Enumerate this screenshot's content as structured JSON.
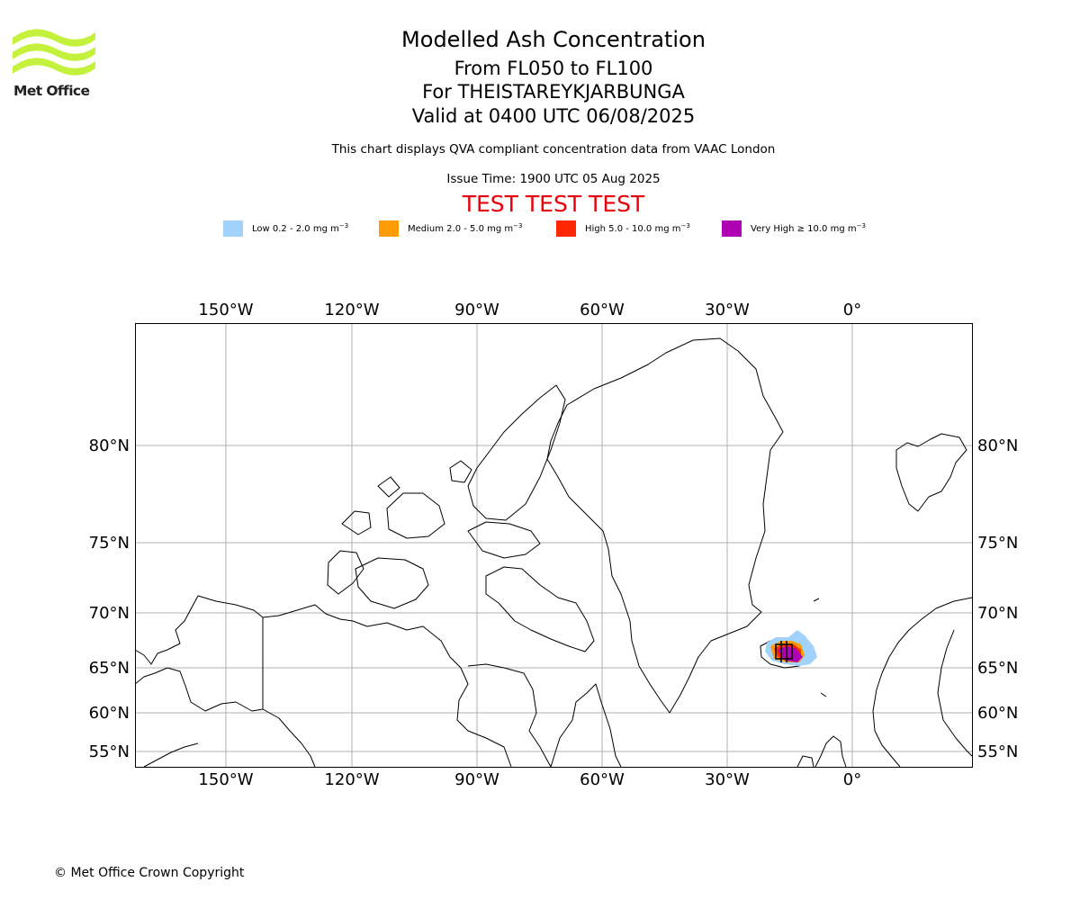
{
  "logo": {
    "text": "Met Office",
    "color": "#c4f13b"
  },
  "header": {
    "title": "Modelled Ash Concentration",
    "levels": "From FL050 to FL100",
    "volcano": "For THEISTAREYKJARBUNGA",
    "valid": "Valid at 0400 UTC 06/08/2025",
    "description": "This chart displays QVA compliant concentration data from VAAC London",
    "issue": "Issue Time: 1900 UTC 05 Aug 2025",
    "test_banner": "TEST TEST TEST"
  },
  "legend": [
    {
      "label": "Low 0.2 - 2.0 mg m",
      "color": "#a0d2fb"
    },
    {
      "label": "Medium 2.0 - 5.0 mg m",
      "color": "#ff9b05"
    },
    {
      "label": "High 5.0 - 10.0 mg m",
      "color": "#ff2600"
    },
    {
      "label": "Very High  ≥  10.0 mg m",
      "color": "#af00b4"
    }
  ],
  "legend_unit_exponent": "−3",
  "map": {
    "lon_ticks": [
      "150°W",
      "120°W",
      "90°W",
      "60°W",
      "30°W",
      "0°"
    ],
    "lat_ticks": [
      "80°N",
      "75°N",
      "70°N",
      "65°N",
      "60°N",
      "55°N"
    ],
    "grid_color": "#b0b0b0"
  },
  "footer": {
    "copyright": "© Met Office Crown Copyright"
  }
}
